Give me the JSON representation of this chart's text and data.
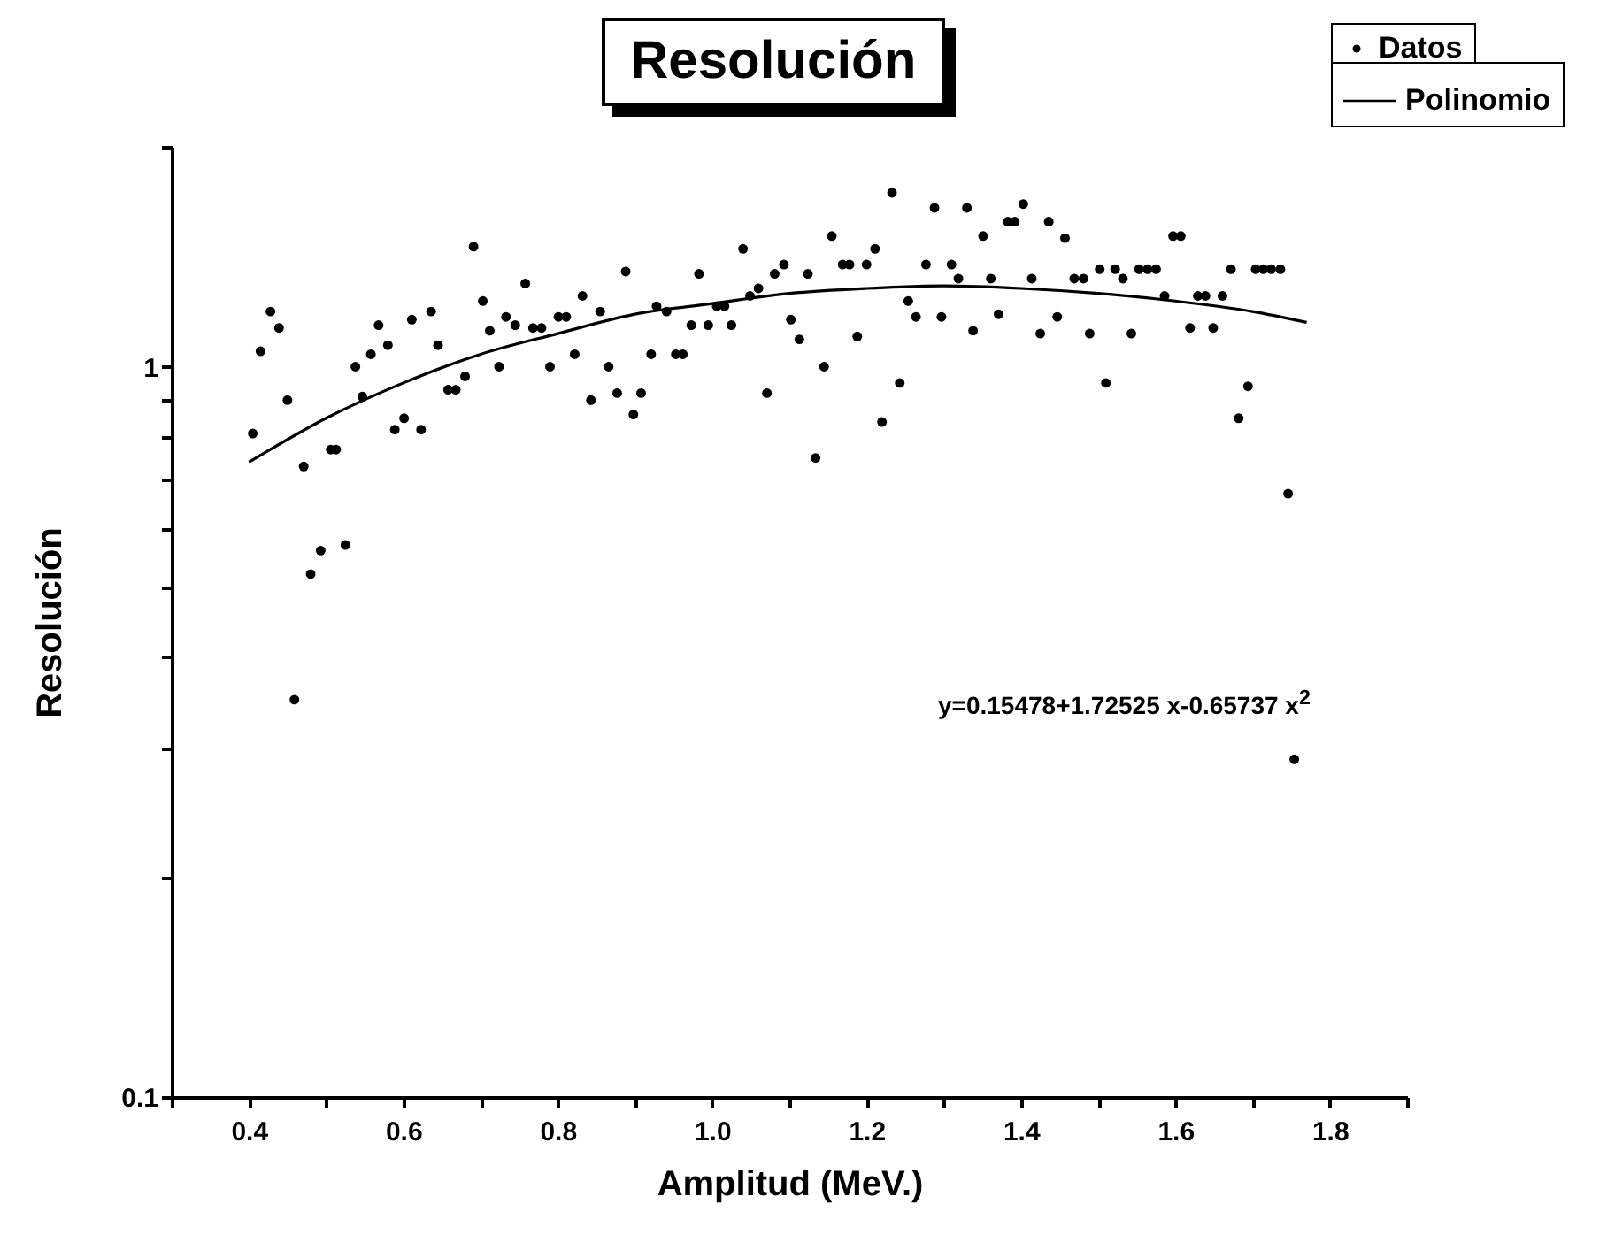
{
  "chart_data": {
    "type": "scatter",
    "title": "Resolución",
    "xlabel": "Amplitud (MeV.)",
    "ylabel": "Resolución",
    "log": "y",
    "grid": false,
    "legend": "top right",
    "xlim": [
      0.3,
      1.9
    ],
    "ylim": [
      0.1,
      2
    ],
    "xticks": [
      {
        "value": 0.3,
        "label": null
      },
      0.4,
      {
        "value": 0.5,
        "label": null
      },
      0.6,
      {
        "value": 0.7,
        "label": null
      },
      0.8,
      {
        "value": 0.9,
        "label": null
      },
      {
        "value": 1,
        "label": "1.0"
      },
      {
        "value": 1.1,
        "label": null
      },
      1.2,
      {
        "value": 1.3,
        "label": null
      },
      1.4,
      {
        "value": 1.5,
        "label": null
      },
      1.6,
      {
        "value": 1.7,
        "label": null
      },
      1.8,
      {
        "value": 1.9,
        "label": null
      }
    ],
    "yticks": [
      0.1,
      {
        "value": 0.2,
        "label": null
      },
      {
        "value": 0.3,
        "label": null
      },
      {
        "value": 0.4,
        "label": null
      },
      {
        "value": 0.5,
        "label": null
      },
      {
        "value": 0.6,
        "label": null
      },
      {
        "value": 0.7,
        "label": null
      },
      {
        "value": 0.8,
        "label": null
      },
      {
        "value": 0.9,
        "label": null
      },
      1,
      {
        "value": 2,
        "label": null
      }
    ],
    "annotations": [
      "y=0.15478+1.72525 x-0.65737 x$^{2}$"
    ],
    "series": [
      {
        "name": "Datos",
        "type": "scatter",
        "marker": "circle",
        "color": "#000000",
        "x": [
          0.405,
          0.415,
          0.428,
          0.439,
          0.45,
          0.459,
          0.471,
          0.48,
          0.493,
          0.506,
          0.513,
          0.525,
          0.538,
          0.547,
          0.558,
          0.568,
          0.58,
          0.589,
          0.601,
          0.611,
          0.623,
          0.636,
          0.645,
          0.658,
          0.668,
          0.68,
          0.691,
          0.703,
          0.712,
          0.724,
          0.733,
          0.745,
          0.758,
          0.768,
          0.779,
          0.79,
          0.801,
          0.811,
          0.822,
          0.832,
          0.843,
          0.855,
          0.866,
          0.877,
          0.888,
          0.898,
          0.908,
          0.921,
          0.928,
          0.941,
          0.953,
          0.962,
          0.973,
          0.983,
          0.995,
          1.006,
          1.016,
          1.025,
          1.04,
          1.049,
          1.06,
          1.071,
          1.081,
          1.093,
          1.102,
          1.113,
          1.124,
          1.134,
          1.145,
          1.155,
          1.169,
          1.178,
          1.188,
          1.2,
          1.211,
          1.22,
          1.233,
          1.243,
          1.254,
          1.264,
          1.277,
          1.288,
          1.297,
          1.31,
          1.319,
          1.33,
          1.338,
          1.351,
          1.361,
          1.371,
          1.383,
          1.392,
          1.403,
          1.414,
          1.425,
          1.436,
          1.447,
          1.457,
          1.469,
          1.481,
          1.489,
          1.502,
          1.51,
          1.522,
          1.532,
          1.543,
          1.553,
          1.564,
          1.575,
          1.586,
          1.597,
          1.607,
          1.619,
          1.629,
          1.639,
          1.649,
          1.661,
          1.672,
          1.682,
          1.694,
          1.704,
          1.714,
          1.724,
          1.736,
          1.746,
          1.754
        ],
        "values": [
          0.81,
          1.05,
          1.19,
          1.13,
          0.9,
          0.35,
          0.73,
          0.52,
          0.56,
          0.77,
          0.77,
          0.57,
          1.0,
          0.91,
          1.04,
          1.14,
          1.07,
          0.82,
          0.85,
          1.16,
          0.82,
          1.19,
          1.07,
          0.93,
          0.93,
          0.97,
          1.46,
          1.23,
          1.12,
          1.0,
          1.17,
          1.14,
          1.3,
          1.13,
          1.13,
          1.0,
          1.17,
          1.17,
          1.04,
          1.25,
          0.9,
          1.19,
          1.0,
          0.92,
          1.35,
          0.86,
          0.92,
          1.04,
          1.21,
          1.19,
          1.04,
          1.04,
          1.14,
          1.34,
          1.14,
          1.21,
          1.21,
          1.14,
          1.45,
          1.25,
          1.28,
          0.92,
          1.34,
          1.38,
          1.16,
          1.09,
          1.34,
          0.75,
          1.0,
          1.51,
          1.38,
          1.38,
          1.1,
          1.38,
          1.45,
          0.84,
          1.73,
          0.95,
          1.23,
          1.17,
          1.38,
          1.65,
          1.17,
          1.38,
          1.32,
          1.65,
          1.12,
          1.51,
          1.32,
          1.18,
          1.58,
          1.58,
          1.67,
          1.32,
          1.11,
          1.58,
          1.17,
          1.5,
          1.32,
          1.32,
          1.11,
          1.36,
          0.95,
          1.36,
          1.32,
          1.11,
          1.36,
          1.36,
          1.36,
          1.25,
          1.51,
          1.51,
          1.13,
          1.25,
          1.25,
          1.13,
          1.25,
          1.36,
          0.85,
          0.94,
          1.36,
          1.36,
          1.36,
          1.36,
          0.67,
          0.29
        ]
      },
      {
        "name": "Polinomio",
        "type": "line",
        "color": "#000000",
        "line_style": "solid",
        "x": [
          0.4,
          0.5,
          0.6,
          0.7,
          0.8,
          0.9,
          1.0,
          1.1,
          1.2,
          1.3,
          1.4,
          1.5,
          1.6,
          1.7,
          1.77
        ],
        "values": [
          0.74,
          0.85,
          0.95,
          1.04,
          1.11,
          1.18,
          1.22,
          1.26,
          1.28,
          1.29,
          1.28,
          1.26,
          1.23,
          1.19,
          1.15
        ]
      }
    ]
  }
}
